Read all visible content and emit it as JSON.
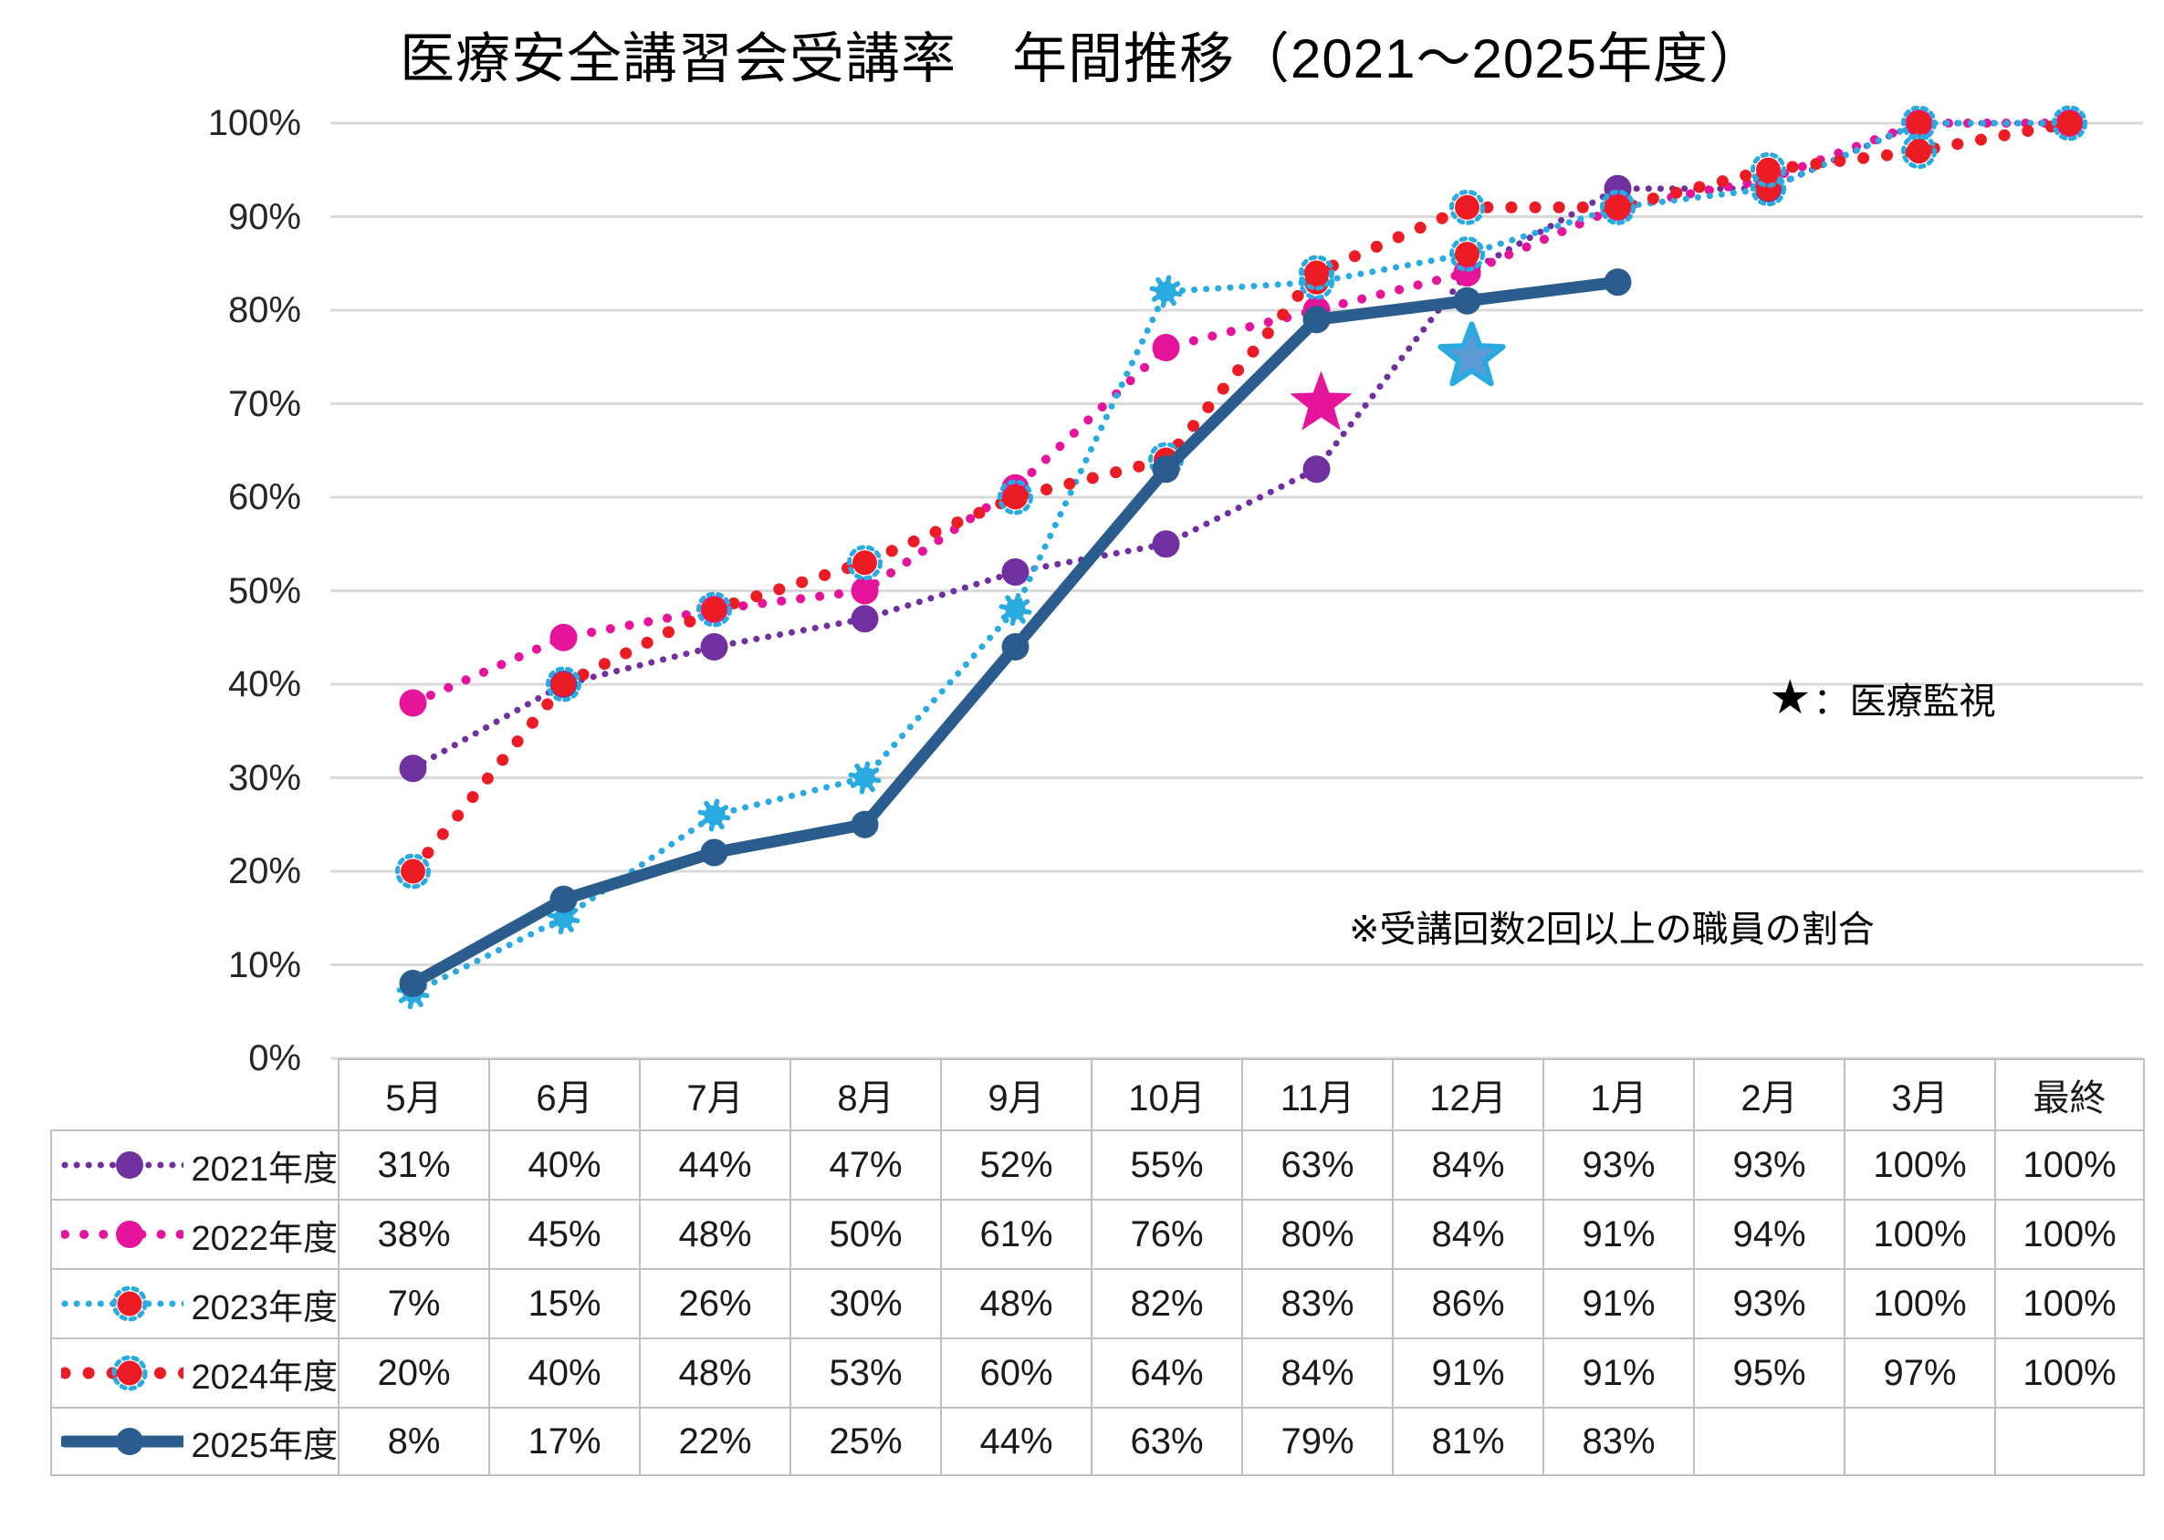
{
  "title": "医療安全講習会受講率　年間推移（2021～2025年度）",
  "footnote": "※受講回数2回以上の職員の割合",
  "annotation": {
    "symbol": "★",
    "text": "：医療監視"
  },
  "y_axis": {
    "min": 0,
    "max": 100,
    "step": 10,
    "unit": "%"
  },
  "chart_data": {
    "type": "line",
    "title": "医療安全講習会受講率　年間推移（2021～2025年度）",
    "categories": [
      "5月",
      "6月",
      "7月",
      "8月",
      "9月",
      "10月",
      "11月",
      "12月",
      "1月",
      "2月",
      "3月",
      "最終"
    ],
    "ylim": [
      0,
      100
    ],
    "grid": true,
    "series": [
      {
        "name": "2021年度",
        "color": "#7030A0",
        "line_style": "dotted-fine",
        "marker": "circle",
        "values": [
          31,
          40,
          44,
          47,
          52,
          55,
          63,
          84,
          93,
          93,
          100,
          100
        ]
      },
      {
        "name": "2022年度",
        "color": "#E6149B",
        "line_style": "dotted-med",
        "marker": "circle",
        "values": [
          38,
          45,
          48,
          50,
          61,
          76,
          80,
          84,
          91,
          94,
          100,
          100
        ]
      },
      {
        "name": "2023年度",
        "color": "#29ABE2",
        "line_style": "dotted-fine",
        "marker": "snowflake",
        "marker_change_index": 6,
        "marker_changed": "circle-ring",
        "legend_marker": "circle-ring",
        "values": [
          7,
          15,
          26,
          30,
          48,
          82,
          83,
          86,
          91,
          93,
          100,
          100
        ]
      },
      {
        "name": "2024年度",
        "color": "#ED1C24",
        "line_style": "dotted-bold",
        "marker": "circle-ring",
        "values": [
          20,
          40,
          48,
          53,
          60,
          64,
          84,
          91,
          91,
          95,
          97,
          100
        ]
      },
      {
        "name": "2025年度",
        "color": "#2B5C8E",
        "line_style": "solid",
        "marker": "circle",
        "values": [
          8,
          17,
          22,
          25,
          44,
          63,
          79,
          81,
          83,
          null,
          null,
          null
        ]
      }
    ],
    "stars": [
      {
        "label": "医療監視",
        "category": "11月",
        "value": 70,
        "fill": "#E6149B",
        "stroke": "none"
      },
      {
        "label": "医療監視",
        "category": "12月",
        "value": 75,
        "fill": "#5B9BD5",
        "stroke": "#29ABE2"
      }
    ],
    "marker_accent_color": "#29ABE2",
    "marker_fill_color": "#ED1C24",
    "gridline_color": "#D9D9D9"
  },
  "table": {
    "note": "row headers are the series names; columns are the chart categories; values shown with % suffix"
  }
}
